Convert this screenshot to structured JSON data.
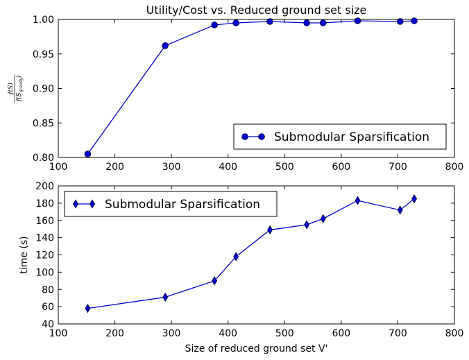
{
  "chart_data": [
    {
      "type": "line",
      "title": "Utility/Cost vs. Reduced ground set size",
      "xlabel": "",
      "ylabel": {
        "numerator": "f(S)",
        "denominator_base": "f(S",
        "denominator_sub": "greedy",
        "denominator_close": ")"
      },
      "xlim": [
        100,
        800
      ],
      "ylim": [
        0.8,
        1.0
      ],
      "xticks": [
        "100",
        "200",
        "300",
        "400",
        "500",
        "600",
        "700",
        "800"
      ],
      "yticks": [
        "0.80",
        "0.85",
        "0.90",
        "0.95",
        "1.00"
      ],
      "legend_position": "lower-right",
      "series": [
        {
          "name": "Submodular Sparsification",
          "color": "#0000cc",
          "marker": "circle",
          "x": [
            152,
            289,
            376,
            414,
            474,
            539,
            568,
            629,
            704,
            729
          ],
          "y": [
            0.805,
            0.962,
            0.992,
            0.995,
            0.997,
            0.995,
            0.995,
            0.998,
            0.997,
            0.998
          ]
        }
      ]
    },
    {
      "type": "line",
      "title": "",
      "xlabel": "Size of reduced ground set V'",
      "ylabel": "time (s)",
      "xlim": [
        100,
        800
      ],
      "ylim": [
        40,
        200
      ],
      "xticks": [
        "100",
        "200",
        "300",
        "400",
        "500",
        "600",
        "700",
        "800"
      ],
      "yticks": [
        "40",
        "60",
        "80",
        "100",
        "120",
        "140",
        "160",
        "180",
        "200"
      ],
      "legend_position": "upper-left",
      "series": [
        {
          "name": "Submodular Sparsification",
          "color": "#0000cc",
          "marker": "diamond",
          "x": [
            152,
            289,
            376,
            414,
            474,
            539,
            568,
            629,
            704,
            729
          ],
          "y": [
            58,
            71,
            90,
            118,
            149,
            155,
            162,
            183,
            172,
            185
          ]
        }
      ]
    }
  ]
}
